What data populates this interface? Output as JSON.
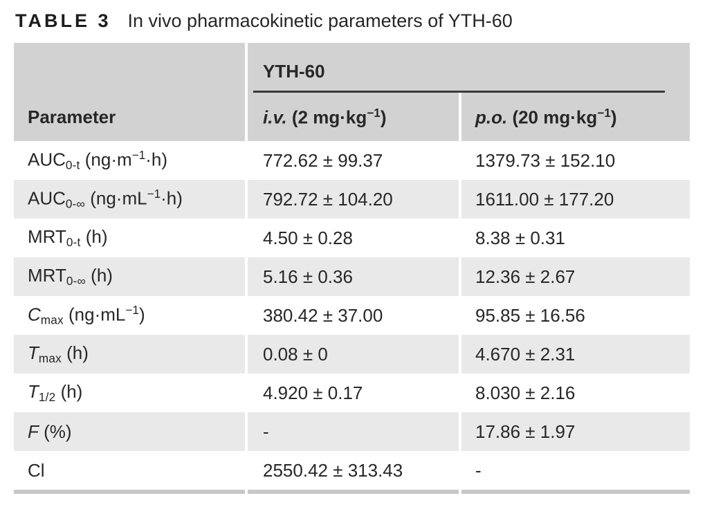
{
  "caption": {
    "label": "TABLE 3",
    "text": "In vivo pharmacokinetic parameters of YTH-60"
  },
  "table": {
    "group_header": "YTH-60",
    "columns": [
      {
        "name": "parameter",
        "segments": [
          {
            "t": "Parameter",
            "s": "n"
          }
        ]
      },
      {
        "name": "iv",
        "segments": [
          {
            "t": "i.v.",
            "s": "i"
          },
          {
            "t": " (2 mg·kg",
            "s": "n"
          },
          {
            "t": "−1",
            "s": "sup"
          },
          {
            "t": ")",
            "s": "n"
          }
        ]
      },
      {
        "name": "po",
        "segments": [
          {
            "t": "p.o.",
            "s": "i"
          },
          {
            "t": " (20 mg·kg",
            "s": "n"
          },
          {
            "t": "−1",
            "s": "sup"
          },
          {
            "t": ")",
            "s": "n"
          }
        ]
      }
    ],
    "rows": [
      {
        "param": [
          {
            "t": "AUC",
            "s": "n"
          },
          {
            "t": "0-t",
            "s": "sub"
          },
          {
            "t": " (ng·m",
            "s": "n"
          },
          {
            "t": "−1",
            "s": "sup"
          },
          {
            "t": "·h)",
            "s": "n"
          }
        ],
        "iv": "772.62 ± 99.37",
        "po": "1379.73 ± 152.10"
      },
      {
        "param": [
          {
            "t": "AUC",
            "s": "n"
          },
          {
            "t": "0-∞",
            "s": "sub"
          },
          {
            "t": " (ng·mL",
            "s": "n"
          },
          {
            "t": "−1",
            "s": "sup"
          },
          {
            "t": "·h)",
            "s": "n"
          }
        ],
        "iv": "792.72 ± 104.20",
        "po": "1611.00 ± 177.20"
      },
      {
        "param": [
          {
            "t": "MRT",
            "s": "n"
          },
          {
            "t": "0-t",
            "s": "sub"
          },
          {
            "t": " (h)",
            "s": "n"
          }
        ],
        "iv": "4.50 ± 0.28",
        "po": "8.38 ± 0.31"
      },
      {
        "param": [
          {
            "t": "MRT",
            "s": "n"
          },
          {
            "t": "0-∞",
            "s": "sub"
          },
          {
            "t": " (h)",
            "s": "n"
          }
        ],
        "iv": "5.16 ± 0.36",
        "po": "12.36 ± 2.67"
      },
      {
        "param": [
          {
            "t": "C",
            "s": "i"
          },
          {
            "t": "max",
            "s": "sub"
          },
          {
            "t": " (ng·mL",
            "s": "n"
          },
          {
            "t": "−1",
            "s": "sup"
          },
          {
            "t": ")",
            "s": "n"
          }
        ],
        "iv": "380.42 ± 37.00",
        "po": "95.85 ± 16.56"
      },
      {
        "param": [
          {
            "t": "T",
            "s": "i"
          },
          {
            "t": "max",
            "s": "sub"
          },
          {
            "t": " (h)",
            "s": "n"
          }
        ],
        "iv": "0.08 ± 0",
        "po": "4.670 ± 2.31"
      },
      {
        "param": [
          {
            "t": "T",
            "s": "i"
          },
          {
            "t": "1/2",
            "s": "sub"
          },
          {
            "t": " (h)",
            "s": "n"
          }
        ],
        "iv": "4.920 ± 0.17",
        "po": "8.030 ± 2.16"
      },
      {
        "param": [
          {
            "t": "F",
            "s": "i"
          },
          {
            "t": " (%)",
            "s": "n"
          }
        ],
        "iv": "-",
        "po": "17.86 ± 1.97"
      },
      {
        "param": [
          {
            "t": "Cl",
            "s": "n"
          }
        ],
        "iv": "2550.42 ± 313.43",
        "po": "-"
      }
    ]
  },
  "colors": {
    "header_band": "#d2d2d2",
    "stripe": "#e9e9e9",
    "group_rule": "#3a3a3a",
    "bottom_border": "#c7c7c7",
    "text": "#272727"
  }
}
